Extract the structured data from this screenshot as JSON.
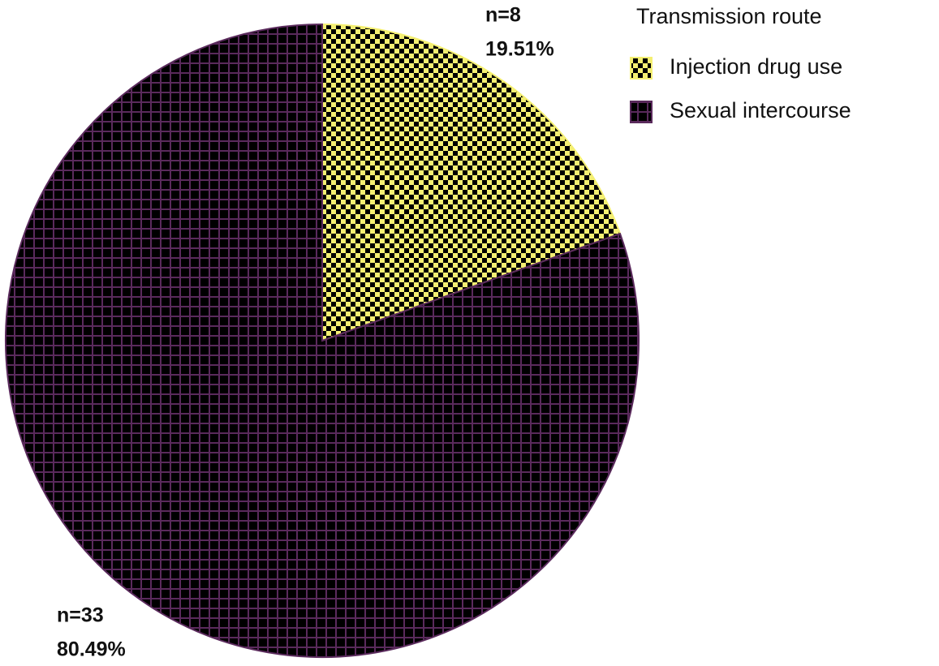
{
  "chart_data": {
    "type": "pie",
    "categories": [
      "Injection drug use",
      "Sexual intercourse"
    ],
    "values": [
      19.51,
      80.49
    ],
    "value_labels": [
      "19.51%",
      "80.49%"
    ],
    "counts": [
      8,
      33
    ],
    "count_labels": [
      "n=8",
      "n=33"
    ],
    "colors": [
      "#f4ef72",
      "#5a2a5c"
    ],
    "legend_title": "Transmission route",
    "legend": "upper right"
  }
}
